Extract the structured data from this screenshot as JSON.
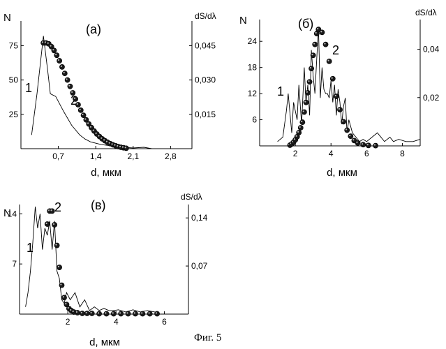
{
  "figure_caption": "Фиг. 5",
  "chart_data": [
    {
      "type": "line",
      "panel_label": "(а)",
      "xlabel": "d, мкм",
      "ylabel": "N",
      "ylabel_right": "dS/dλ",
      "xlim": [
        0,
        3.2
      ],
      "ylim": [
        0,
        93
      ],
      "ylim_right": [
        0,
        0.0558
      ],
      "x_ticks": [
        "0,7",
        "1,4",
        "2,1",
        "2,8"
      ],
      "x_tick_values": [
        0.7,
        1.4,
        2.1,
        2.8
      ],
      "y_ticks": [
        "25",
        "50",
        "75"
      ],
      "y_tick_values": [
        25,
        50,
        75
      ],
      "y_right_ticks": [
        "0,015",
        "0,030",
        "0,045"
      ],
      "y_right_tick_values": [
        0.015,
        0.03,
        0.045
      ],
      "curve_labels": [
        "1",
        "2"
      ],
      "series": [
        {
          "style": "line",
          "axis": "left",
          "x": [
            0.2,
            0.3,
            0.42,
            0.5,
            0.55,
            0.65,
            0.8,
            0.95,
            1.1,
            1.2,
            1.3,
            1.5,
            1.7,
            1.9,
            2.1,
            2.3,
            2.45
          ],
          "y": [
            10,
            40,
            82,
            57,
            40,
            38,
            27,
            17,
            10,
            7,
            5,
            3,
            2,
            1,
            0.5,
            1,
            0
          ]
        },
        {
          "style": "markers",
          "axis": "right",
          "x": [
            0.42,
            0.47,
            0.52,
            0.57,
            0.62,
            0.67,
            0.72,
            0.77,
            0.82,
            0.87,
            0.92,
            0.97,
            1.02,
            1.07,
            1.12,
            1.17,
            1.22,
            1.27,
            1.32,
            1.37,
            1.42,
            1.47,
            1.52,
            1.57,
            1.62,
            1.67,
            1.72,
            1.77,
            1.82,
            1.87,
            1.92,
            1.97
          ],
          "y": [
            0.0462,
            0.0462,
            0.0458,
            0.0446,
            0.0429,
            0.0408,
            0.0384,
            0.0357,
            0.0329,
            0.03,
            0.0272,
            0.0244,
            0.0217,
            0.0192,
            0.0168,
            0.0146,
            0.0126,
            0.0108,
            0.0092,
            0.0077,
            0.0064,
            0.0053,
            0.0043,
            0.0035,
            0.0028,
            0.0022,
            0.0017,
            0.0013,
            0.0009,
            0.0006,
            0.0004,
            0.0002
          ]
        }
      ]
    },
    {
      "type": "line",
      "panel_label": "(б)",
      "xlabel": "d, мкм",
      "ylabel": "N",
      "ylabel_right": "dS/dλ",
      "xlim": [
        0,
        9
      ],
      "ylim": [
        0,
        29
      ],
      "ylim_right": [
        0,
        0.0523
      ],
      "x_ticks": [
        "2",
        "4",
        "6",
        "8"
      ],
      "x_tick_values": [
        2,
        4,
        6,
        8
      ],
      "y_ticks": [
        "6",
        "12",
        "18",
        "24"
      ],
      "y_tick_values": [
        6,
        12,
        18,
        24
      ],
      "y_right_ticks": [
        "0,02",
        "0,04"
      ],
      "y_right_tick_values": [
        0.02,
        0.04
      ],
      "curve_labels": [
        "1",
        "2"
      ],
      "series": [
        {
          "style": "line",
          "axis": "left",
          "x": [
            1.0,
            1.3,
            1.5,
            1.6,
            1.8,
            1.9,
            2.1,
            2.2,
            2.35,
            2.5,
            2.6,
            2.7,
            2.8,
            2.9,
            3.0,
            3.1,
            3.2,
            3.3,
            3.4,
            3.5,
            3.6,
            3.7,
            3.8,
            3.9,
            4.0,
            4.1,
            4.2,
            4.3,
            4.4,
            4.5,
            4.6,
            4.7,
            4.8,
            4.9,
            5.0,
            5.2,
            5.4,
            5.6,
            5.8,
            6.0,
            6.3,
            6.6,
            7.0,
            7.3,
            7.5,
            7.8,
            8.2,
            8.6,
            9.0
          ],
          "y": [
            1,
            2,
            8,
            12,
            3,
            10,
            6,
            14,
            5,
            18,
            10,
            14,
            7,
            22,
            16,
            12,
            20,
            27,
            11,
            18,
            13,
            12,
            12,
            11,
            15,
            10,
            14,
            7,
            13,
            10,
            5,
            9,
            11,
            3,
            6,
            3,
            2,
            1,
            1.5,
            1,
            2,
            3,
            1,
            2,
            1,
            1.5,
            1,
            1,
            1.5
          ]
        },
        {
          "style": "markers",
          "axis": "right",
          "x": [
            1.7,
            1.8,
            1.9,
            2.0,
            2.1,
            2.2,
            2.3,
            2.4,
            2.5,
            2.6,
            2.7,
            2.8,
            2.9,
            3.0,
            3.1,
            3.2,
            3.3,
            3.5,
            3.7,
            3.9,
            4.1,
            4.3,
            4.5,
            4.7,
            4.9,
            5.1,
            5.3,
            5.5,
            5.8,
            6.1,
            6.5
          ],
          "y": [
            0.0003,
            0.0008,
            0.0015,
            0.0025,
            0.0038,
            0.0055,
            0.0075,
            0.0098,
            0.014,
            0.018,
            0.022,
            0.0265,
            0.032,
            0.0375,
            0.042,
            0.0465,
            0.0482,
            0.047,
            0.042,
            0.035,
            0.0278,
            0.0205,
            0.015,
            0.01,
            0.0065,
            0.004,
            0.0022,
            0.0012,
            0.0005,
            0.0002,
            0.0001
          ]
        }
      ]
    },
    {
      "type": "line",
      "panel_label": "(в)",
      "xlabel": "d, мкм",
      "ylabel": "N",
      "ylabel_right": "dS/dλ",
      "xlim": [
        0,
        7
      ],
      "ylim": [
        0,
        15.3
      ],
      "ylim_right": [
        0,
        0.1595
      ],
      "x_ticks": [
        "2",
        "4",
        "6"
      ],
      "x_tick_values": [
        2,
        4,
        6
      ],
      "y_ticks": [
        "7",
        "14"
      ],
      "y_tick_values": [
        7,
        14
      ],
      "y_right_ticks": [
        "0,07",
        "0,14"
      ],
      "y_right_tick_values": [
        0.07,
        0.14
      ],
      "curve_labels": [
        "1",
        "2"
      ],
      "series": [
        {
          "style": "line",
          "axis": "left",
          "x": [
            0.25,
            0.35,
            0.45,
            0.55,
            0.65,
            0.75,
            0.85,
            0.95,
            1.05,
            1.15,
            1.25,
            1.35,
            1.45,
            1.55,
            1.65,
            1.75,
            1.85,
            1.95,
            2.1,
            2.3,
            2.5,
            2.7,
            2.9,
            3.1,
            3.3,
            3.5,
            3.7,
            3.9,
            4.1,
            4.4,
            4.7,
            5.0,
            5.3,
            5.6,
            5.7
          ],
          "y": [
            1,
            3,
            6,
            10,
            15,
            12,
            14,
            9,
            12,
            11,
            13,
            9,
            13,
            6,
            5,
            2,
            1.5,
            3,
            2,
            3,
            1,
            2,
            0.5,
            1,
            0.5,
            0.8,
            0.5,
            0.5,
            0.6,
            0.3,
            0.6,
            0.3,
            0.5,
            0.3,
            0.3
          ]
        },
        {
          "style": "markers",
          "axis": "right",
          "x": [
            1.15,
            1.25,
            1.35,
            1.45,
            1.55,
            1.65,
            1.75,
            1.85,
            1.95,
            2.05,
            2.15,
            2.25,
            2.4,
            2.6,
            2.8,
            3.0,
            3.3,
            3.6,
            3.9,
            4.2,
            4.5,
            4.8,
            5.1,
            5.4,
            5.7
          ],
          "y": [
            0.131,
            0.15,
            0.15,
            0.13,
            0.1,
            0.068,
            0.042,
            0.024,
            0.014,
            0.008,
            0.005,
            0.003,
            0.002,
            0.001,
            0.001,
            0.001,
            0.0005,
            0.0005,
            0.0005,
            0.0005,
            0.0005,
            0.0005,
            0.0005,
            0.0005,
            0.0005
          ]
        }
      ]
    }
  ]
}
